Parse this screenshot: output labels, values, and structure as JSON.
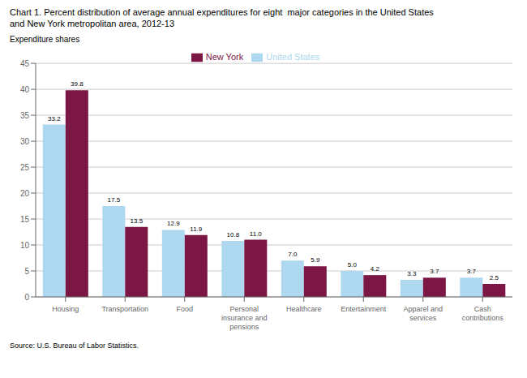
{
  "chart_data": {
    "type": "bar",
    "title": "Chart 1. Percent distribution of average annual expenditures for eight  major categories in the United States",
    "subtitle": "and New York metropolitan area, 2012-13",
    "ylabel": "Expenditure shares",
    "source": "Source: U.S. Bureau of Labor Statistics.",
    "categories": [
      "Housing",
      "Transportation",
      "Food",
      "Personal\ninsurance and\npensions",
      "Healthcare",
      "Entertainment",
      "Apparel and\nservices",
      "Cash\ncontributions"
    ],
    "series": [
      {
        "name": "United States",
        "color": "#ADD8F0",
        "values": [
          33.2,
          17.5,
          12.9,
          10.8,
          7.0,
          5.0,
          3.3,
          3.7
        ],
        "value_labels": [
          "33.2",
          "17.5",
          "12.9",
          "10.8",
          "7.0",
          "5.0",
          "3.3",
          "3.7"
        ]
      },
      {
        "name": "New York",
        "color": "#7B1645",
        "values": [
          39.8,
          13.5,
          11.9,
          11.0,
          5.9,
          4.2,
          3.7,
          2.5
        ],
        "value_labels": [
          "39.8",
          "13.5",
          "11.9",
          "11.0",
          "5.9",
          "4.2",
          "3.7",
          "2.5"
        ]
      }
    ],
    "ylim": [
      0,
      45
    ],
    "yticks": [
      0,
      5,
      10,
      15,
      20,
      25,
      30,
      35,
      40,
      45
    ],
    "grid": true,
    "legend": "top",
    "data_labels": true
  }
}
